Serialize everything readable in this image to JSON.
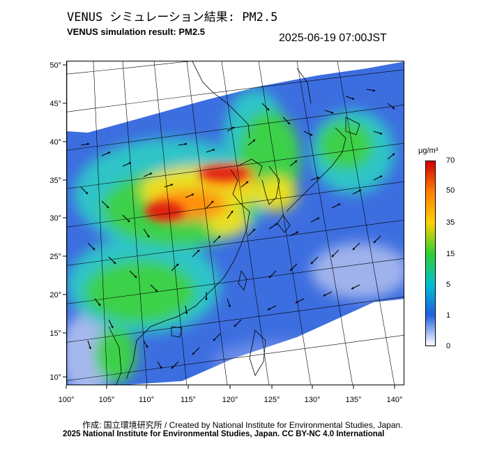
{
  "header": {
    "title_ja": "VENUS シミュレーション結果: PM2.5",
    "title_en": "VENUS simulation result: PM2.5",
    "timestamp": "2025-06-19 07:00JST"
  },
  "map": {
    "lat_labels": [
      "50°",
      "45°",
      "40°",
      "35°",
      "30°",
      "25°",
      "20°",
      "15°",
      "10°"
    ],
    "lon_labels": [
      "100°",
      "105°",
      "110°",
      "115°",
      "120°",
      "125°",
      "130°",
      "135°",
      "140°"
    ],
    "variable": "PM2.5",
    "features": [
      "concentration-field",
      "wind-vectors",
      "coastlines",
      "graticule"
    ]
  },
  "colorbar": {
    "unit": "μg/m³",
    "ticks": [
      "70",
      "50",
      "35",
      "15",
      "5",
      "1",
      "0"
    ],
    "colors": [
      "#d00000",
      "#ff8000",
      "#ffd000",
      "#30d030",
      "#00c0d0",
      "#2060e0",
      "#ffffff"
    ]
  },
  "footer": {
    "credit": "作成: 国立環境研究所 / Created by National Institute for Environmental Studies, Japan.",
    "copyright": "2025 National Institute for Environmental Studies, Japan. CC BY-NC 4.0 International"
  }
}
